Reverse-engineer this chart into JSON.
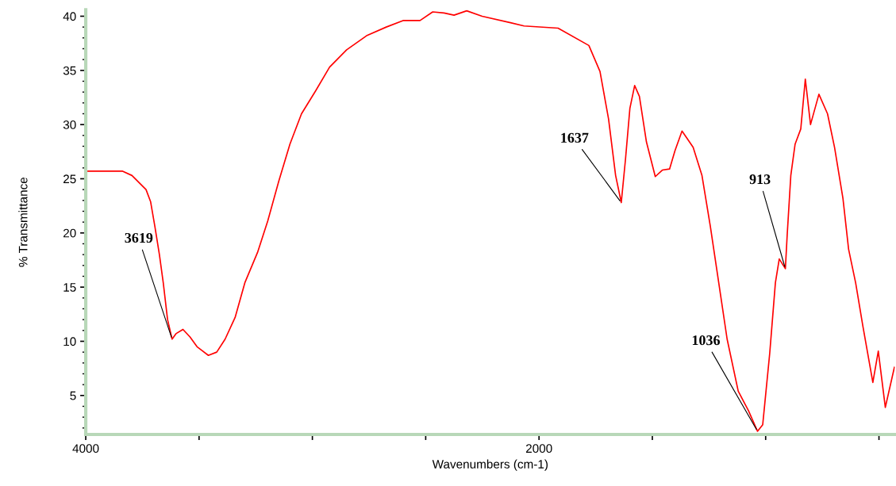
{
  "chart_data": {
    "type": "line",
    "xlabel": "Wavenumbers (cm-1)",
    "ylabel": "% Transmittance",
    "xlim": [
      4000,
      430
    ],
    "ylim": [
      1.4,
      40.6
    ],
    "xticks": [
      4000,
      {
        "value": 3500,
        "label": null
      },
      {
        "value": 3000,
        "label": null
      },
      {
        "value": 2500,
        "label": null
      },
      2000,
      {
        "value": 1500,
        "label": null
      },
      {
        "value": 1000,
        "label": null
      },
      {
        "value": 500,
        "label": null
      }
    ],
    "yticks": [
      5,
      10,
      15,
      20,
      25,
      30,
      35,
      40
    ],
    "grid": false,
    "legend": false,
    "marker": "none",
    "line_style": "solid",
    "series": [
      {
        "color": "#ff0000",
        "x": [
          4000,
          3853,
          3837,
          3796,
          3734,
          3714,
          3695,
          3675,
          3658,
          3639,
          3619,
          3602,
          3571,
          3540,
          3509,
          3459,
          3422,
          3385,
          3341,
          3298,
          3242,
          3197,
          3148,
          3099,
          3048,
          2986,
          2924,
          2849,
          2761,
          2674,
          2600,
          2525,
          2469,
          2419,
          2375,
          2319,
          2251,
          2126,
          2066,
          1916,
          1780,
          1731,
          1693,
          1662,
          1637,
          1618,
          1599,
          1578,
          1557,
          1526,
          1487,
          1456,
          1424,
          1400,
          1369,
          1320,
          1281,
          1244,
          1207,
          1170,
          1121,
          1076,
          1036,
          1013,
          982,
          957,
          940,
          913,
          905,
          889,
          870,
          845,
          825,
          802,
          765,
          727,
          696,
          659,
          634,
          603,
          571,
          527,
          503,
          472,
          432
        ],
        "values": [
          25.7,
          25.7,
          25.7,
          25.3,
          24.0,
          22.9,
          20.6,
          18.0,
          15.4,
          12.0,
          10.2,
          10.7,
          11.1,
          10.4,
          9.5,
          8.7,
          9.0,
          10.2,
          12.2,
          15.4,
          18.2,
          21.1,
          24.8,
          28.2,
          31.0,
          33.1,
          35.3,
          36.9,
          38.2,
          39.0,
          39.6,
          39.6,
          40.4,
          40.3,
          40.1,
          40.5,
          40.0,
          39.4,
          39.1,
          38.9,
          37.3,
          34.9,
          30.5,
          25.3,
          22.8,
          26.9,
          31.5,
          33.6,
          32.6,
          28.4,
          25.2,
          25.8,
          25.9,
          27.6,
          29.4,
          27.9,
          25.3,
          20.6,
          15.4,
          10.2,
          5.4,
          3.6,
          1.7,
          2.3,
          8.9,
          15.4,
          17.6,
          16.7,
          19.8,
          25.3,
          28.2,
          29.6,
          34.2,
          30.0,
          32.8,
          31.0,
          27.9,
          23.2,
          18.5,
          15.4,
          11.4,
          6.2,
          9.1,
          3.9,
          7.6
        ]
      }
    ],
    "annotations": [
      {
        "text": "3619",
        "x": 3619,
        "y": 10.2
      },
      {
        "text": "1637",
        "x": 1637,
        "y": 22.8
      },
      {
        "text": "1036",
        "x": 1036,
        "y": 1.7
      },
      {
        "text": "913",
        "x": 913,
        "y": 16.7
      }
    ]
  }
}
